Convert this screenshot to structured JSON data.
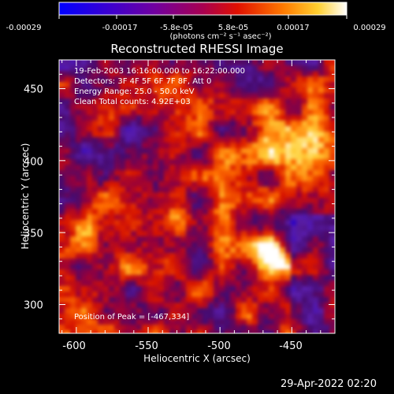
{
  "chart_data": {
    "type": "heatmap",
    "title": "Reconstructed RHESSI Image",
    "xlabel": "Heliocentric X (arcsec)",
    "ylabel": "Heliocentric Y (arcsec)",
    "xlim": [
      -612,
      -420
    ],
    "ylim": [
      280,
      470
    ],
    "x_ticks": [
      "-600",
      "-550",
      "-500",
      "-450"
    ],
    "y_ticks": [
      "300",
      "350",
      "400",
      "450"
    ],
    "colorbar": {
      "min": -0.00029,
      "max": 0.00029,
      "tick_labels": [
        "-0.00029",
        "-0.00017",
        "-5.8e-05",
        "5.8e-05",
        "0.00017",
        "0.00029"
      ],
      "units": "(photons cm⁻² s⁻¹ asec⁻²)",
      "colormap": [
        "#0000ff",
        "#5a00a8",
        "#9b0050",
        "#d81000",
        "#ff6a00",
        "#ffd040",
        "#ffffff"
      ]
    },
    "annotations": [
      "19-Feb-2003 16:16:00.000 to 16:22:00.000",
      "Detectors: 3F 4F 5F 6F 7F 8F, Att 0",
      "Energy Range: 25.0 - 50.0 keV",
      "Clean      Total counts: 4.92E+03"
    ],
    "peak_label": "Position of Peak = [-467,334]",
    "peak": {
      "x": -467,
      "y": 334
    },
    "grid": false
  },
  "footer": {
    "timestamp": "29-Apr-2022 02:20"
  }
}
